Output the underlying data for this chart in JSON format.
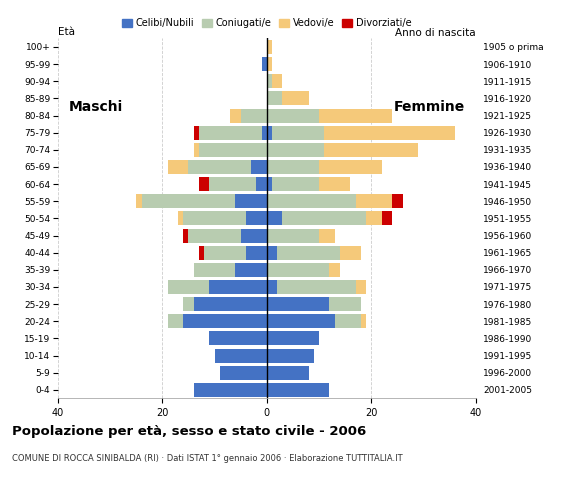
{
  "age_groups": [
    "0-4",
    "5-9",
    "10-14",
    "15-19",
    "20-24",
    "25-29",
    "30-34",
    "35-39",
    "40-44",
    "45-49",
    "50-54",
    "55-59",
    "60-64",
    "65-69",
    "70-74",
    "75-79",
    "80-84",
    "85-89",
    "90-94",
    "95-99",
    "100+"
  ],
  "birth_years": [
    "2001-2005",
    "1996-2000",
    "1991-1995",
    "1986-1990",
    "1981-1985",
    "1976-1980",
    "1971-1975",
    "1966-1970",
    "1961-1965",
    "1956-1960",
    "1951-1955",
    "1946-1950",
    "1941-1945",
    "1936-1940",
    "1931-1935",
    "1926-1930",
    "1921-1925",
    "1916-1920",
    "1911-1915",
    "1906-1910",
    "1905 o prima"
  ],
  "colors": {
    "celibe": "#4472C4",
    "coniugato": "#B8CCB0",
    "vedovo": "#F5C97A",
    "divorziato": "#CC0000"
  },
  "males": {
    "celibe": [
      14,
      9,
      10,
      11,
      16,
      14,
      11,
      6,
      4,
      5,
      4,
      6,
      2,
      3,
      0,
      1,
      0,
      0,
      0,
      1,
      0
    ],
    "coniugato": [
      0,
      0,
      0,
      0,
      3,
      2,
      8,
      8,
      8,
      10,
      12,
      18,
      9,
      12,
      13,
      12,
      5,
      0,
      0,
      0,
      0
    ],
    "vedovo": [
      0,
      0,
      0,
      0,
      0,
      0,
      0,
      0,
      0,
      0,
      1,
      1,
      0,
      4,
      1,
      0,
      2,
      0,
      0,
      0,
      0
    ],
    "divorziato": [
      0,
      0,
      0,
      0,
      0,
      0,
      0,
      0,
      1,
      1,
      0,
      0,
      2,
      0,
      0,
      1,
      0,
      0,
      0,
      0,
      0
    ]
  },
  "females": {
    "celibe": [
      12,
      8,
      9,
      10,
      13,
      12,
      2,
      0,
      2,
      0,
      3,
      0,
      1,
      0,
      0,
      1,
      0,
      0,
      0,
      0,
      0
    ],
    "coniugato": [
      0,
      0,
      0,
      0,
      5,
      6,
      15,
      12,
      12,
      10,
      16,
      17,
      9,
      10,
      11,
      10,
      10,
      3,
      1,
      0,
      0
    ],
    "vedovo": [
      0,
      0,
      0,
      0,
      1,
      0,
      2,
      2,
      4,
      3,
      3,
      7,
      6,
      12,
      18,
      25,
      14,
      5,
      2,
      1,
      1
    ],
    "divorziato": [
      0,
      0,
      0,
      0,
      0,
      0,
      0,
      0,
      0,
      0,
      2,
      2,
      0,
      0,
      0,
      0,
      0,
      0,
      0,
      0,
      0
    ]
  },
  "xlim": 40,
  "title": "Popolazione per età, sesso e stato civile - 2006",
  "subtitle": "COMUNE DI ROCCA SINIBALDA (RI) · Dati ISTAT 1° gennaio 2006 · Elaborazione TUTTITALIA.IT",
  "ylabel_left": "Età",
  "ylabel_right": "Anno di nascita",
  "label_maschi": "Maschi",
  "label_femmine": "Femmine",
  "legend_labels": [
    "Celibi/Nubili",
    "Coniugati/e",
    "Vedovi/e",
    "Divorziati/e"
  ],
  "background_color": "#ffffff",
  "xtick_labels": [
    "40",
    "20",
    "0",
    "20",
    "40"
  ],
  "xticks": [
    -40,
    -20,
    0,
    20,
    40
  ]
}
